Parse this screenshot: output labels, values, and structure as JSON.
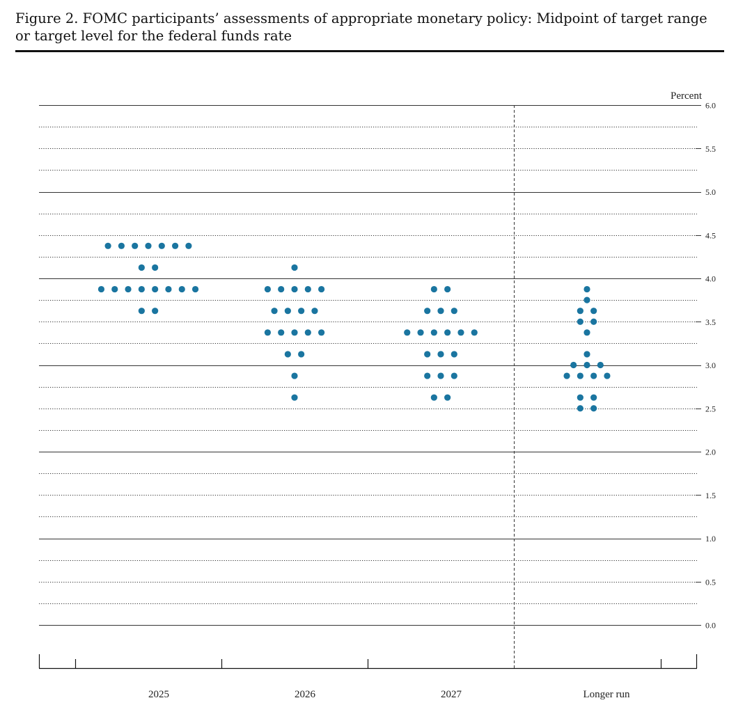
{
  "figure": {
    "title": "Figure 2.  FOMC participants’ assessments of appropriate monetary policy: Midpoint of target range or target level for the federal funds rate"
  },
  "chart_data": {
    "type": "scatter",
    "title": "Figure 2.  FOMC participants’ assessments of appropriate monetary policy: Midpoint of target range or target level for the federal funds rate",
    "ylabel": "Percent",
    "xlabel": "",
    "ylim": [
      0.0,
      6.0
    ],
    "yticks": [
      "0.0",
      "0.5",
      "1.0",
      "1.5",
      "2.0",
      "2.5",
      "3.0",
      "3.5",
      "4.0",
      "4.5",
      "5.0",
      "5.5",
      "6.0"
    ],
    "categories": [
      "2025",
      "2026",
      "2027",
      "Longer run"
    ],
    "grid": true,
    "dot_color": "#1a75a0",
    "series": [
      {
        "category": "2025",
        "points": [
          {
            "y": 4.375,
            "count": 7
          },
          {
            "y": 4.125,
            "count": 2
          },
          {
            "y": 3.875,
            "count": 8
          },
          {
            "y": 3.625,
            "count": 2
          }
        ]
      },
      {
        "category": "2026",
        "points": [
          {
            "y": 4.125,
            "count": 1
          },
          {
            "y": 3.875,
            "count": 5
          },
          {
            "y": 3.625,
            "count": 4
          },
          {
            "y": 3.375,
            "count": 5
          },
          {
            "y": 3.125,
            "count": 2
          },
          {
            "y": 2.875,
            "count": 1
          },
          {
            "y": 2.625,
            "count": 1
          }
        ]
      },
      {
        "category": "2027",
        "points": [
          {
            "y": 3.875,
            "count": 2
          },
          {
            "y": 3.625,
            "count": 3
          },
          {
            "y": 3.375,
            "count": 6
          },
          {
            "y": 3.125,
            "count": 3
          },
          {
            "y": 2.875,
            "count": 3
          },
          {
            "y": 2.625,
            "count": 2
          }
        ]
      },
      {
        "category": "Longer run",
        "points": [
          {
            "y": 3.875,
            "count": 1
          },
          {
            "y": 3.75,
            "count": 1
          },
          {
            "y": 3.625,
            "count": 2
          },
          {
            "y": 3.5,
            "count": 2
          },
          {
            "y": 3.375,
            "count": 1
          },
          {
            "y": 3.125,
            "count": 1
          },
          {
            "y": 3.0,
            "count": 3
          },
          {
            "y": 2.875,
            "count": 4
          },
          {
            "y": 2.625,
            "count": 2
          },
          {
            "y": 2.5,
            "count": 2
          }
        ]
      }
    ]
  }
}
